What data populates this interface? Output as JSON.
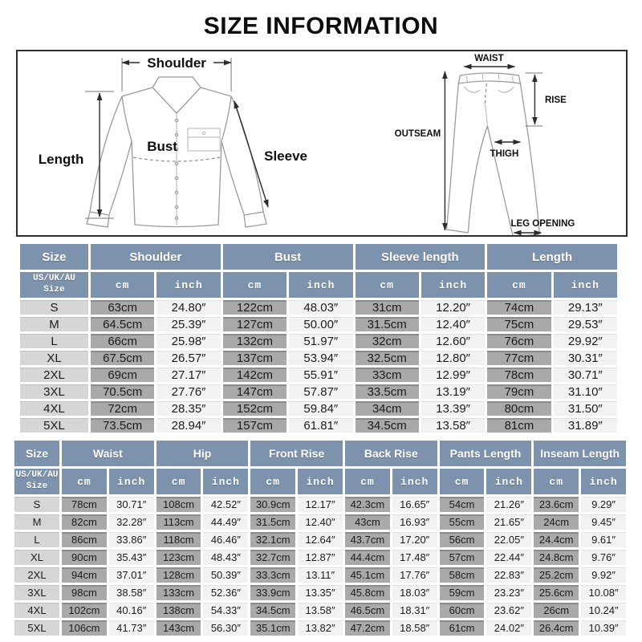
{
  "title": "SIZE INFORMATION",
  "colors": {
    "header_bg": "#7d92ac",
    "header_text": "#ffffff",
    "size_col_bg": "#d6d6d6",
    "cm_col_bg": "#a9a9a9",
    "inch_col_bg": "#f2f2f2",
    "grid": "#ffffff",
    "diagram_border": "#2e2e2e",
    "garment_line": "#9a9a9a",
    "arrow_line": "#2b2b2b"
  },
  "diagrams": {
    "shirt": {
      "labels": {
        "shoulder": "Shoulder",
        "length": "Length",
        "bust": "Bust",
        "sleeve": "Sleeve"
      }
    },
    "pants": {
      "labels": {
        "waist": "WAIST",
        "rise": "RISE",
        "outseam": "OUTSEAM",
        "thigh": "THIGH",
        "leg_opening": "LEG OPENING"
      }
    }
  },
  "tables": [
    {
      "name": "tops",
      "size_header": "Size",
      "subheader": "US/UK/AU Size",
      "units": {
        "cm": "cm",
        "inch": "inch"
      },
      "groups": [
        "Shoulder",
        "Bust",
        "Sleeve length",
        "Length"
      ],
      "rows": [
        {
          "size": "S",
          "cells": [
            "63cm",
            "24.80″",
            "122cm",
            "48.03″",
            "31cm",
            "12.20″",
            "74cm",
            "29.13″"
          ]
        },
        {
          "size": "M",
          "cells": [
            "64.5cm",
            "25.39″",
            "127cm",
            "50.00″",
            "31.5cm",
            "12.40″",
            "75cm",
            "29.53″"
          ]
        },
        {
          "size": "L",
          "cells": [
            "66cm",
            "25.98″",
            "132cm",
            "51.97″",
            "32cm",
            "12.60″",
            "76cm",
            "29.92″"
          ]
        },
        {
          "size": "XL",
          "cells": [
            "67.5cm",
            "26.57″",
            "137cm",
            "53.94″",
            "32.5cm",
            "12.80″",
            "77cm",
            "30.31″"
          ]
        },
        {
          "size": "2XL",
          "cells": [
            "69cm",
            "27.17″",
            "142cm",
            "55.91″",
            "33cm",
            "12.99″",
            "78cm",
            "30.71″"
          ]
        },
        {
          "size": "3XL",
          "cells": [
            "70.5cm",
            "27.76″",
            "147cm",
            "57.87″",
            "33.5cm",
            "13.19″",
            "79cm",
            "31.10″"
          ]
        },
        {
          "size": "4XL",
          "cells": [
            "72cm",
            "28.35″",
            "152cm",
            "59.84″",
            "34cm",
            "13.39″",
            "80cm",
            "31.50″"
          ]
        },
        {
          "size": "5XL",
          "cells": [
            "73.5cm",
            "28.94″",
            "157cm",
            "61.81″",
            "34.5cm",
            "13.58″",
            "81cm",
            "31.89″"
          ]
        }
      ]
    },
    {
      "name": "bottoms",
      "size_header": "Size",
      "subheader": "US/UK/AU Size",
      "units": {
        "cm": "cm",
        "inch": "inch"
      },
      "groups": [
        "Waist",
        "Hip",
        "Front Rise",
        "Back Rise",
        "Pants Length",
        "Inseam Length"
      ],
      "rows": [
        {
          "size": "S",
          "cells": [
            "78cm",
            "30.71″",
            "108cm",
            "42.52″",
            "30.9cm",
            "12.17″",
            "42.3cm",
            "16.65″",
            "54cm",
            "21.26″",
            "23.6cm",
            "9.29″"
          ]
        },
        {
          "size": "M",
          "cells": [
            "82cm",
            "32.28″",
            "113cm",
            "44.49″",
            "31.5cm",
            "12.40″",
            "43cm",
            "16.93″",
            "55cm",
            "21.65″",
            "24cm",
            "9.45″"
          ]
        },
        {
          "size": "L",
          "cells": [
            "86cm",
            "33.86″",
            "118cm",
            "46.46″",
            "32.1cm",
            "12.64″",
            "43.7cm",
            "17.20″",
            "56cm",
            "22.05″",
            "24.4cm",
            "9.61″"
          ]
        },
        {
          "size": "XL",
          "cells": [
            "90cm",
            "35.43″",
            "123cm",
            "48.43″",
            "32.7cm",
            "12.87″",
            "44.4cm",
            "17.48″",
            "57cm",
            "22.44″",
            "24.8cm",
            "9.76″"
          ]
        },
        {
          "size": "2XL",
          "cells": [
            "94cm",
            "37.01″",
            "128cm",
            "50.39″",
            "33.3cm",
            "13.11″",
            "45.1cm",
            "17.76″",
            "58cm",
            "22.83″",
            "25.2cm",
            "9.92″"
          ]
        },
        {
          "size": "3XL",
          "cells": [
            "98cm",
            "38.58″",
            "133cm",
            "52.36″",
            "33.9cm",
            "13.35″",
            "45.8cm",
            "18.03″",
            "59cm",
            "23.23″",
            "25.6cm",
            "10.08″"
          ]
        },
        {
          "size": "4XL",
          "cells": [
            "102cm",
            "40.16″",
            "138cm",
            "54.33″",
            "34.5cm",
            "13.58″",
            "46.5cm",
            "18.31″",
            "60cm",
            "23.62″",
            "26cm",
            "10.24″"
          ]
        },
        {
          "size": "5XL",
          "cells": [
            "106cm",
            "41.73″",
            "143cm",
            "56.30″",
            "35.1cm",
            "13.82″",
            "47.2cm",
            "18.58″",
            "61cm",
            "24.02″",
            "26.4cm",
            "10.39″"
          ]
        }
      ]
    }
  ]
}
